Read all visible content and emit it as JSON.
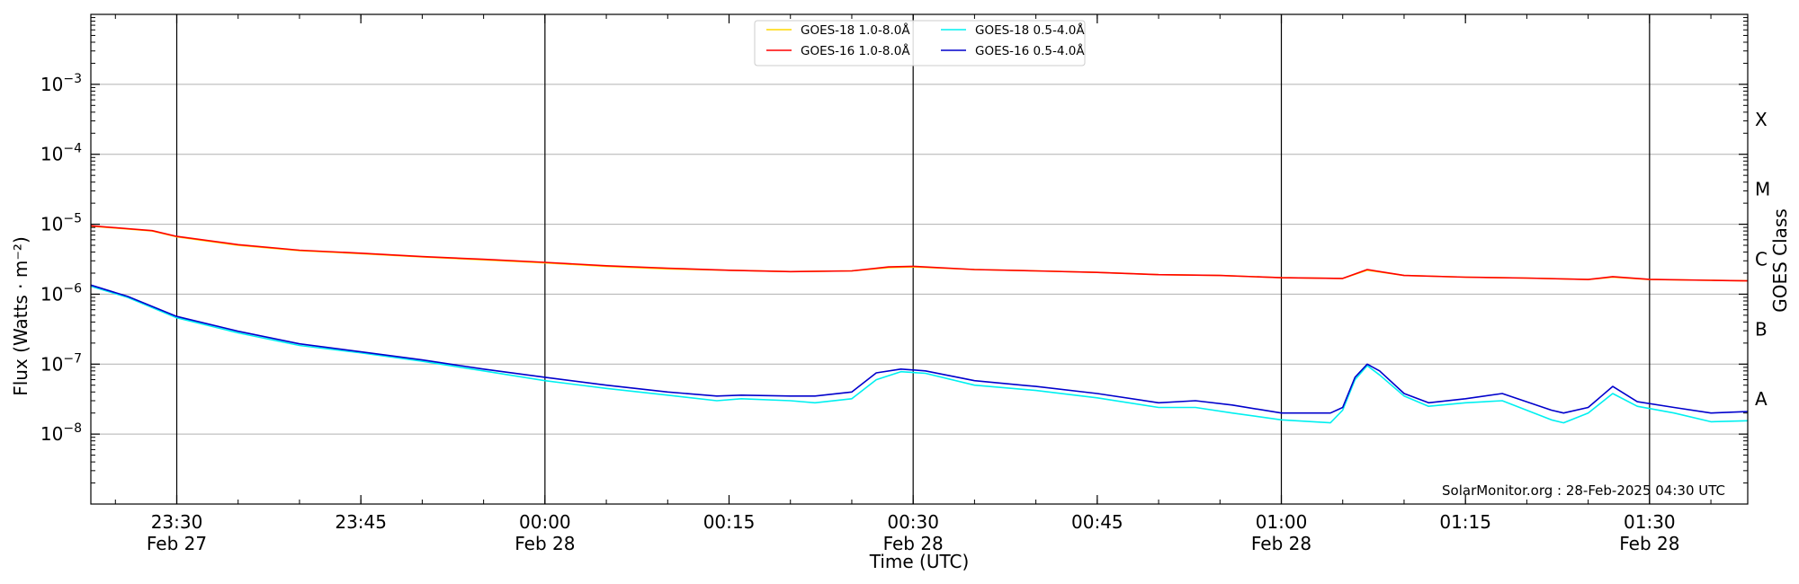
{
  "chart_data": {
    "type": "line",
    "xlabel": "Time (UTC)",
    "ylabel": "Flux (Watts · m⁻²)",
    "y2label": "GOES Class",
    "yscale": "log",
    "ylim": [
      1e-09,
      0.01
    ],
    "xlim": [
      "2025-02-27T23:23",
      "2025-02-28T01:38"
    ],
    "grid": "horizontal",
    "legend_placement": "top-center",
    "y_ticks": [
      {
        "value": 1e-08,
        "label": "10",
        "exp": "−8"
      },
      {
        "value": 1e-07,
        "label": "10",
        "exp": "−7"
      },
      {
        "value": 1e-06,
        "label": "10",
        "exp": "−6"
      },
      {
        "value": 1e-05,
        "label": "10",
        "exp": "−5"
      },
      {
        "value": 0.0001,
        "label": "10",
        "exp": "−4"
      },
      {
        "value": 0.001,
        "label": "10",
        "exp": "−3"
      }
    ],
    "x_ticks": [
      {
        "time": "2025-02-27T23:30",
        "line1": "23:30",
        "line2": "Feb 27"
      },
      {
        "time": "2025-02-27T23:45",
        "line1": "23:45",
        "line2": ""
      },
      {
        "time": "2025-02-28T00:00",
        "line1": "00:00",
        "line2": "Feb 28"
      },
      {
        "time": "2025-02-28T00:15",
        "line1": "00:15",
        "line2": ""
      },
      {
        "time": "2025-02-28T00:30",
        "line1": "00:30",
        "line2": "Feb 28"
      },
      {
        "time": "2025-02-28T00:45",
        "line1": "00:45",
        "line2": ""
      },
      {
        "time": "2025-02-28T01:00",
        "line1": "01:00",
        "line2": "Feb 28"
      },
      {
        "time": "2025-02-28T01:15",
        "line1": "01:15",
        "line2": ""
      },
      {
        "time": "2025-02-28T01:30",
        "line1": "01:30",
        "line2": "Feb 28"
      }
    ],
    "vertical_lines": [
      "2025-02-27T23:30",
      "2025-02-28T00:00",
      "2025-02-28T00:30",
      "2025-02-28T01:00",
      "2025-02-28T01:30"
    ],
    "goes_classes": [
      {
        "label": "A",
        "value": 3.16e-08
      },
      {
        "label": "B",
        "value": 3.16e-07
      },
      {
        "label": "C",
        "value": 3.16e-06
      },
      {
        "label": "M",
        "value": 3.16e-05
      },
      {
        "label": "X",
        "value": 0.000316
      }
    ],
    "credit": "SolarMonitor.org : 28-Feb-2025 04:30 UTC",
    "series": [
      {
        "name": "GOES-18 1.0-8.0Å",
        "color": "#ffd700",
        "x": [
          "2025-02-27T23:23",
          "2025-02-27T23:28",
          "2025-02-27T23:30",
          "2025-02-27T23:35",
          "2025-02-27T23:40",
          "2025-02-27T23:45",
          "2025-02-27T23:50",
          "2025-02-27T23:55",
          "2025-02-28T00:00",
          "2025-02-28T00:05",
          "2025-02-28T00:10",
          "2025-02-28T00:15",
          "2025-02-28T00:20",
          "2025-02-28T00:25",
          "2025-02-28T00:28",
          "2025-02-28T00:30",
          "2025-02-28T00:35",
          "2025-02-28T00:40",
          "2025-02-28T00:45",
          "2025-02-28T00:50",
          "2025-02-28T00:55",
          "2025-02-28T01:00",
          "2025-02-28T01:05",
          "2025-02-28T01:07",
          "2025-02-28T01:10",
          "2025-02-28T01:15",
          "2025-02-28T01:20",
          "2025-02-28T01:25",
          "2025-02-28T01:27",
          "2025-02-28T01:30",
          "2025-02-28T01:35",
          "2025-02-28T01:38"
        ],
        "y": [
          9.4e-06,
          8e-06,
          6.6e-06,
          5e-06,
          4.2e-06,
          3.8e-06,
          3.4e-06,
          3.1e-06,
          2.8e-06,
          2.5e-06,
          2.3e-06,
          2.2e-06,
          2.1e-06,
          2.15e-06,
          2.4e-06,
          2.45e-06,
          2.25e-06,
          2.15e-06,
          2.05e-06,
          1.9e-06,
          1.85e-06,
          1.72e-06,
          1.68e-06,
          2.2e-06,
          1.85e-06,
          1.75e-06,
          1.7e-06,
          1.62e-06,
          1.75e-06,
          1.62e-06,
          1.58e-06,
          1.55e-06
        ]
      },
      {
        "name": "GOES-16 1.0-8.0Å",
        "color": "#ff0000",
        "x": [
          "2025-02-27T23:23",
          "2025-02-27T23:28",
          "2025-02-27T23:30",
          "2025-02-27T23:35",
          "2025-02-27T23:40",
          "2025-02-27T23:45",
          "2025-02-27T23:50",
          "2025-02-27T23:55",
          "2025-02-28T00:00",
          "2025-02-28T00:05",
          "2025-02-28T00:10",
          "2025-02-28T00:15",
          "2025-02-28T00:20",
          "2025-02-28T00:25",
          "2025-02-28T00:28",
          "2025-02-28T00:30",
          "2025-02-28T00:35",
          "2025-02-28T00:40",
          "2025-02-28T00:45",
          "2025-02-28T00:50",
          "2025-02-28T00:55",
          "2025-02-28T01:00",
          "2025-02-28T01:05",
          "2025-02-28T01:07",
          "2025-02-28T01:10",
          "2025-02-28T01:15",
          "2025-02-28T01:20",
          "2025-02-28T01:25",
          "2025-02-28T01:27",
          "2025-02-28T01:30",
          "2025-02-28T01:35",
          "2025-02-28T01:38"
        ],
        "y": [
          9.5e-06,
          8.1e-06,
          6.7e-06,
          5.1e-06,
          4.25e-06,
          3.85e-06,
          3.45e-06,
          3.15e-06,
          2.85e-06,
          2.55e-06,
          2.35e-06,
          2.2e-06,
          2.1e-06,
          2.15e-06,
          2.45e-06,
          2.5e-06,
          2.25e-06,
          2.15e-06,
          2.05e-06,
          1.9e-06,
          1.85e-06,
          1.72e-06,
          1.68e-06,
          2.25e-06,
          1.85e-06,
          1.75e-06,
          1.7e-06,
          1.62e-06,
          1.78e-06,
          1.63e-06,
          1.58e-06,
          1.55e-06
        ]
      },
      {
        "name": "GOES-18 0.5-4.0Å",
        "color": "#00f0f0",
        "x": [
          "2025-02-27T23:23",
          "2025-02-27T23:26",
          "2025-02-27T23:30",
          "2025-02-27T23:35",
          "2025-02-27T23:40",
          "2025-02-27T23:45",
          "2025-02-27T23:50",
          "2025-02-27T23:55",
          "2025-02-28T00:00",
          "2025-02-28T00:05",
          "2025-02-28T00:10",
          "2025-02-28T00:14",
          "2025-02-28T00:16",
          "2025-02-28T00:20",
          "2025-02-28T00:22",
          "2025-02-28T00:25",
          "2025-02-28T00:27",
          "2025-02-28T00:29",
          "2025-02-28T00:31",
          "2025-02-28T00:35",
          "2025-02-28T00:40",
          "2025-02-28T00:45",
          "2025-02-28T00:50",
          "2025-02-28T00:53",
          "2025-02-28T00:56",
          "2025-02-28T01:00",
          "2025-02-28T01:04",
          "2025-02-28T01:05",
          "2025-02-28T01:06",
          "2025-02-28T01:07",
          "2025-02-28T01:08",
          "2025-02-28T01:10",
          "2025-02-28T01:12",
          "2025-02-28T01:15",
          "2025-02-28T01:18",
          "2025-02-28T01:22",
          "2025-02-28T01:23",
          "2025-02-28T01:25",
          "2025-02-28T01:27",
          "2025-02-28T01:29",
          "2025-02-28T01:32",
          "2025-02-28T01:35",
          "2025-02-28T01:38"
        ],
        "y": [
          1.3e-06,
          9e-07,
          4.6e-07,
          2.8e-07,
          1.85e-07,
          1.45e-07,
          1.1e-07,
          8e-08,
          5.8e-08,
          4.5e-08,
          3.6e-08,
          3e-08,
          3.2e-08,
          3e-08,
          2.8e-08,
          3.2e-08,
          6e-08,
          7.8e-08,
          7.4e-08,
          5e-08,
          4.2e-08,
          3.3e-08,
          2.4e-08,
          2.4e-08,
          2e-08,
          1.6e-08,
          1.45e-08,
          2.2e-08,
          6e-08,
          9.5e-08,
          7e-08,
          3.5e-08,
          2.5e-08,
          2.8e-08,
          3e-08,
          1.6e-08,
          1.45e-08,
          2e-08,
          3.8e-08,
          2.5e-08,
          2e-08,
          1.5e-08,
          1.55e-08
        ]
      },
      {
        "name": "GOES-16 0.5-4.0Å",
        "color": "#0000cc",
        "x": [
          "2025-02-27T23:23",
          "2025-02-27T23:26",
          "2025-02-27T23:30",
          "2025-02-27T23:35",
          "2025-02-27T23:40",
          "2025-02-27T23:45",
          "2025-02-27T23:50",
          "2025-02-27T23:55",
          "2025-02-28T00:00",
          "2025-02-28T00:05",
          "2025-02-28T00:10",
          "2025-02-28T00:14",
          "2025-02-28T00:16",
          "2025-02-28T00:20",
          "2025-02-28T00:22",
          "2025-02-28T00:25",
          "2025-02-28T00:27",
          "2025-02-28T00:29",
          "2025-02-28T00:31",
          "2025-02-28T00:35",
          "2025-02-28T00:40",
          "2025-02-28T00:45",
          "2025-02-28T00:50",
          "2025-02-28T00:53",
          "2025-02-28T00:56",
          "2025-02-28T01:00",
          "2025-02-28T01:04",
          "2025-02-28T01:05",
          "2025-02-28T01:06",
          "2025-02-28T01:07",
          "2025-02-28T01:08",
          "2025-02-28T01:10",
          "2025-02-28T01:12",
          "2025-02-28T01:15",
          "2025-02-28T01:18",
          "2025-02-28T01:22",
          "2025-02-28T01:23",
          "2025-02-28T01:25",
          "2025-02-28T01:27",
          "2025-02-28T01:29",
          "2025-02-28T01:32",
          "2025-02-28T01:35",
          "2025-02-28T01:38"
        ],
        "y": [
          1.35e-06,
          9.3e-07,
          4.8e-07,
          2.95e-07,
          1.95e-07,
          1.5e-07,
          1.15e-07,
          8.5e-08,
          6.5e-08,
          5e-08,
          4e-08,
          3.5e-08,
          3.6e-08,
          3.5e-08,
          3.5e-08,
          4e-08,
          7.5e-08,
          8.5e-08,
          8e-08,
          5.8e-08,
          4.8e-08,
          3.8e-08,
          2.8e-08,
          3e-08,
          2.6e-08,
          2e-08,
          2e-08,
          2.4e-08,
          6.5e-08,
          1e-07,
          8e-08,
          3.8e-08,
          2.8e-08,
          3.2e-08,
          3.8e-08,
          2.2e-08,
          2e-08,
          2.4e-08,
          4.8e-08,
          2.9e-08,
          2.4e-08,
          2e-08,
          2.1e-08
        ]
      }
    ]
  }
}
